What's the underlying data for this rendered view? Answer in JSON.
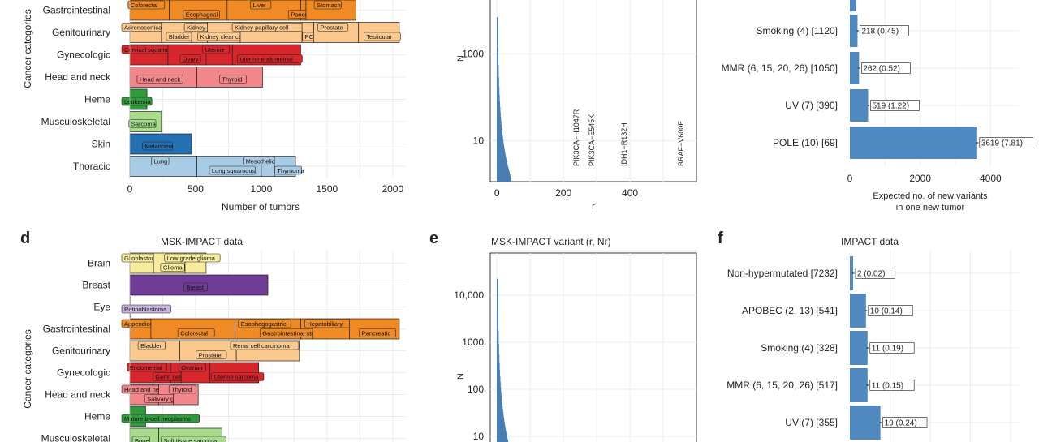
{
  "chart_data": [
    {
      "panel": "",
      "type": "bar",
      "title": "",
      "xlabel": "Number of tumors",
      "ylabel": "Cancer categories",
      "xlim": [
        0,
        2100
      ],
      "xticks": [
        0,
        500,
        1000,
        1500,
        2000
      ],
      "rows": [
        {
          "category": "Gastrointestinal",
          "color": "#f08a24",
          "segments": [
            {
              "label": "Colorectal",
              "start": 0,
              "end": 300
            },
            {
              "label": "Esophageal",
              "start": 300,
              "end": 740
            },
            {
              "label": "Liver",
              "start": 740,
              "end": 1300
            },
            {
              "label": "Pancreatic",
              "start": 1300,
              "end": 1340
            },
            {
              "label": "Stomach",
              "start": 1340,
              "end": 1720
            }
          ]
        },
        {
          "category": "Genitourinary",
          "color": "#fbc98e",
          "segments": [
            {
              "label": "Adrenocortical",
              "start": 0,
              "end": 240
            },
            {
              "label": "Bladder",
              "start": 240,
              "end": 470
            },
            {
              "label": "Kidney",
              "start": 470,
              "end": 590
            },
            {
              "label": "Kidney clear cell",
              "start": 590,
              "end": 840
            },
            {
              "label": "Kidney papillary cell",
              "start": 840,
              "end": 1310
            },
            {
              "label": "PCPG",
              "start": 1310,
              "end": 1400
            },
            {
              "label": "Prostate",
              "start": 1400,
              "end": 1740
            },
            {
              "label": "Testicular",
              "start": 1740,
              "end": 2050
            }
          ]
        },
        {
          "category": "Gynecologic",
          "color": "#d7262c",
          "segments": [
            {
              "label": "Cervical squamous",
              "start": 0,
              "end": 290
            },
            {
              "label": "Ovary",
              "start": 290,
              "end": 580
            },
            {
              "label": "Uterine",
              "start": 580,
              "end": 780
            },
            {
              "label": "Uterine endometrial",
              "start": 780,
              "end": 1300
            }
          ]
        },
        {
          "category": "Head and neck",
          "color": "#f2868a",
          "segments": [
            {
              "label": "Head and neck",
              "start": 0,
              "end": 510
            },
            {
              "label": "Thyroid",
              "start": 510,
              "end": 1010
            }
          ]
        },
        {
          "category": "Heme",
          "color": "#2f9b3a",
          "segments": [
            {
              "label": "Leukemia",
              "start": 0,
              "end": 130
            }
          ]
        },
        {
          "category": "Musculoskeletal",
          "color": "#a8dc8c",
          "segments": [
            {
              "label": "Sarcoma",
              "start": 0,
              "end": 240
            }
          ]
        },
        {
          "category": "Skin",
          "color": "#2371b2",
          "segments": [
            {
              "label": "Melanoma",
              "start": 0,
              "end": 470
            }
          ]
        },
        {
          "category": "Thoracic",
          "color": "#a9cce6",
          "segments": [
            {
              "label": "Lung",
              "start": 0,
              "end": 510
            },
            {
              "label": "Lung squamous",
              "start": 510,
              "end": 1000
            },
            {
              "label": "Mesothelioma",
              "start": 1000,
              "end": 1100
            },
            {
              "label": "Thymoma",
              "start": 1100,
              "end": 1260
            }
          ]
        }
      ]
    },
    {
      "panel": "",
      "type": "bar",
      "title": "",
      "xlabel": "r",
      "ylabel": "Nr",
      "scale": "log-y",
      "xlim": [
        -20,
        600
      ],
      "xticks": [
        0,
        200,
        400
      ],
      "yticks": [
        10,
        1000
      ],
      "annotations": [
        "PIK3CA−H1047R",
        "PIK3CA−E545K",
        "IDH1−R132H",
        "BRAF−V600E"
      ]
    },
    {
      "panel": "",
      "type": "bar",
      "title": "",
      "xlabel": "Expected no. of new variants in one new tumor",
      "xlabel_lines": [
        "Expected no. of new variants",
        "in one new tumor"
      ],
      "xlim": [
        0,
        4800
      ],
      "xticks": [
        0,
        2000,
        4000
      ],
      "categories": [
        "Smoking (4) [1120]",
        "MMR (6, 15, 20, 26) [1050]",
        "UV (7) [390]",
        "POLE (10) [69]"
      ],
      "values": [
        218,
        262,
        519,
        3619
      ],
      "labels": [
        "218 (0.45)",
        "262 (0.52)",
        "519 (1.22)",
        "3619 (7.81)"
      ],
      "color": "#5089bf"
    },
    {
      "panel": "d",
      "type": "bar",
      "title": "MSK-IMPACT data",
      "xlabel": "",
      "ylabel": "Cancer categories",
      "xlim": [
        0,
        2100
      ],
      "rows": [
        {
          "category": "Brain",
          "color": "#f7ec9c",
          "segments": [
            {
              "label": "Glioblastoma",
              "start": 0,
              "end": 180
            },
            {
              "label": "Glioma",
              "start": 180,
              "end": 420
            },
            {
              "label": "Low grade glioma",
              "start": 420,
              "end": 580
            }
          ]
        },
        {
          "category": "Breast",
          "color": "#6f3d96",
          "segments": [
            {
              "label": "Breast",
              "start": 0,
              "end": 1050
            }
          ]
        },
        {
          "category": "Eye",
          "color": "#c9b4dc",
          "segments": [
            {
              "label": "Retinoblastoma",
              "start": 0,
              "end": 8
            }
          ]
        },
        {
          "category": "Gastrointestinal",
          "color": "#f08a24",
          "segments": [
            {
              "label": "Appendiceal",
              "start": 0,
              "end": 160
            },
            {
              "label": "Colorectal",
              "start": 160,
              "end": 800
            },
            {
              "label": "Esophagogastric",
              "start": 800,
              "end": 1300
            },
            {
              "label": "Gastrointestinal stromal tumor",
              "start": 1300,
              "end": 1390
            },
            {
              "label": "Hepatobiliary",
              "start": 1390,
              "end": 1670
            },
            {
              "label": "Pancreatic",
              "start": 1670,
              "end": 2050
            }
          ]
        },
        {
          "category": "Genitourinary",
          "color": "#fbc98e",
          "segments": [
            {
              "label": "Bladder",
              "start": 0,
              "end": 380
            },
            {
              "label": "Prostate",
              "start": 380,
              "end": 810
            },
            {
              "label": "Renal cell carcinoma",
              "start": 810,
              "end": 1290
            }
          ]
        },
        {
          "category": "Gynecologic",
          "color": "#d7262c",
          "segments": [
            {
              "label": "Endometrial",
              "start": 0,
              "end": 310
            },
            {
              "label": "Germ cell tumor",
              "start": 310,
              "end": 390
            },
            {
              "label": "Ovarian",
              "start": 390,
              "end": 610
            },
            {
              "label": "Uterine sarcoma",
              "start": 610,
              "end": 980
            }
          ]
        },
        {
          "category": "Head and neck",
          "color": "#f2868a",
          "segments": [
            {
              "label": "Head and neck",
              "start": 0,
              "end": 220
            },
            {
              "label": "Salivary gland",
              "start": 220,
              "end": 330
            },
            {
              "label": "Thyroid",
              "start": 330,
              "end": 520
            }
          ]
        },
        {
          "category": "Heme",
          "color": "#2f9b3a",
          "segments": [
            {
              "label": "Mature b-cell neoplasms",
              "start": 0,
              "end": 120
            }
          ]
        },
        {
          "category": "Musculoskeletal",
          "color": "#a8dc8c",
          "segments": [
            {
              "label": "Bone",
              "start": 0,
              "end": 220
            },
            {
              "label": "Soft tissue sarcoma",
              "start": 220,
              "end": 700
            }
          ]
        }
      ]
    },
    {
      "panel": "e",
      "type": "bar",
      "title": "MSK-IMPACT variant (r, Nr)",
      "xlabel": "",
      "ylabel": "Nr",
      "scale": "log-y",
      "xlim": [
        -20,
        600
      ],
      "yticks": [
        10,
        100,
        1000,
        10000
      ],
      "ytick_labels": [
        "10",
        "100",
        "1000",
        "10,000"
      ]
    },
    {
      "panel": "f",
      "type": "bar",
      "title": "IMPACT data",
      "xlabel": "",
      "xlim": [
        0,
        105
      ],
      "categories": [
        "Non-hypermutated [7232]",
        "APOBEC (2, 13) [541]",
        "Smoking (4) [328]",
        "MMR (6, 15, 20, 26) [517]",
        "UV (7) [355]"
      ],
      "values": [
        2,
        10,
        11,
        11,
        19
      ],
      "labels": [
        "2 (0.02)",
        "10 (0.14)",
        "11 (0.19)",
        "11 (0.15)",
        "19 (0.24)"
      ],
      "color": "#5089bf"
    }
  ]
}
